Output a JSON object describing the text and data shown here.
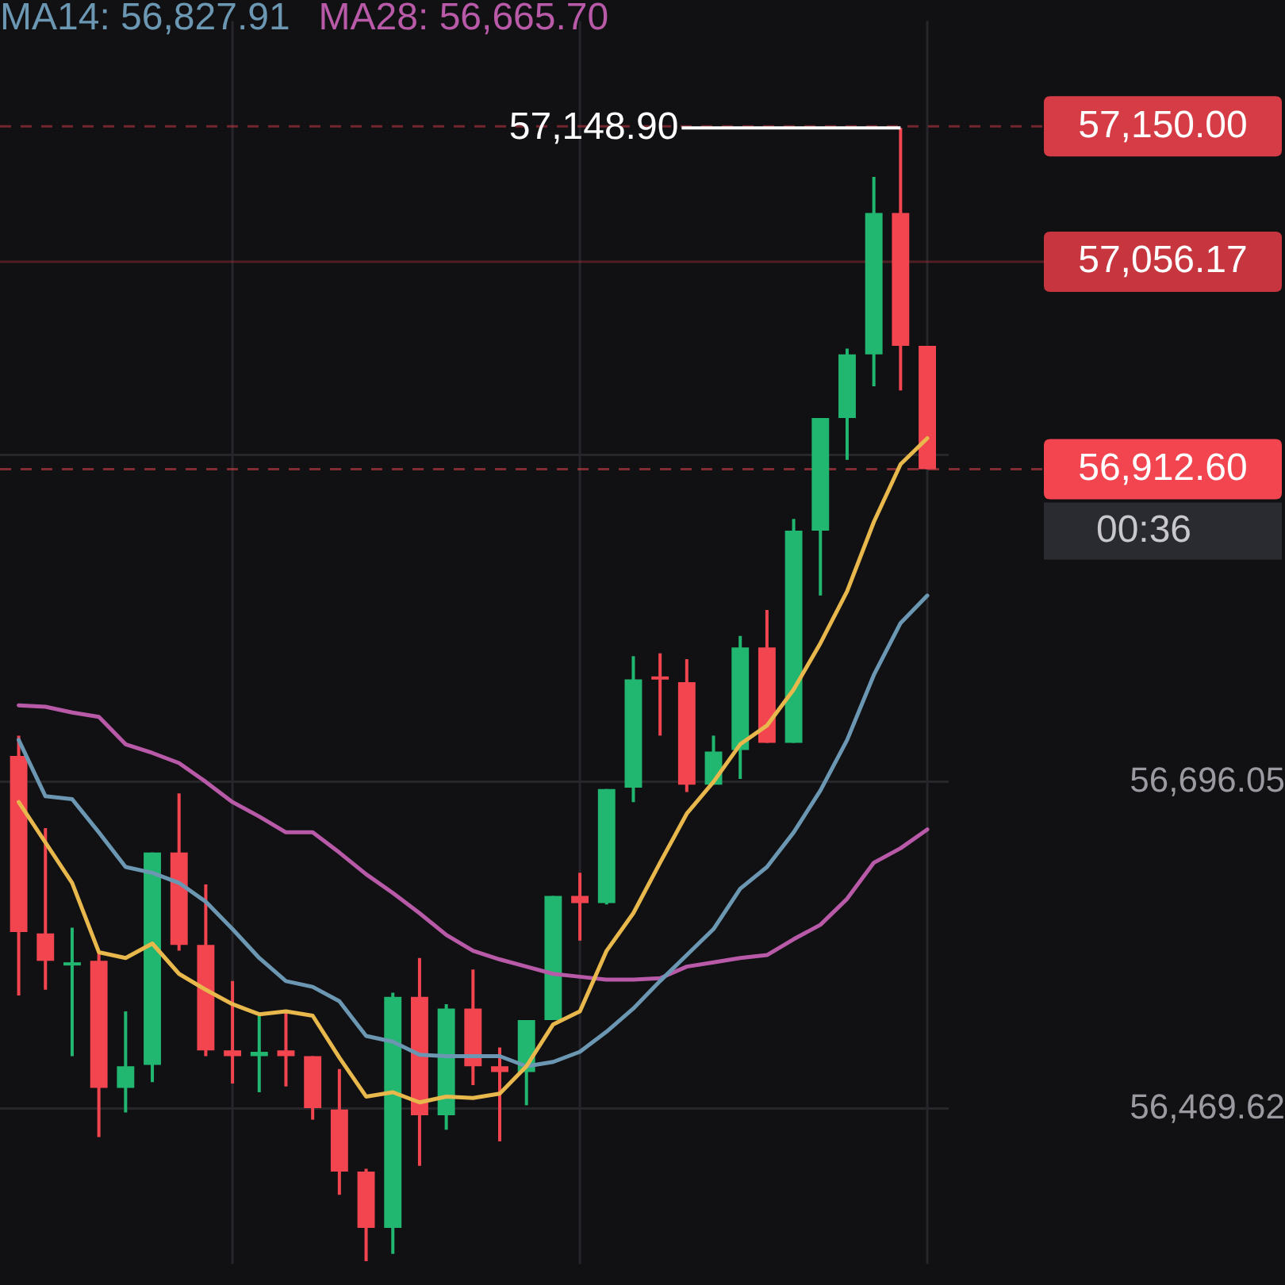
{
  "chart_data": {
    "type": "candlestick",
    "categories": [
      null,
      null,
      null,
      null,
      null,
      null,
      null,
      null,
      null,
      null,
      null,
      null,
      null,
      null,
      null,
      null,
      null,
      null,
      null,
      null,
      null,
      null,
      null,
      null,
      null,
      null,
      null,
      null,
      null,
      null,
      null,
      null,
      null,
      null,
      null
    ],
    "ohlc": [
      [
        56714,
        56728,
        56548,
        56592
      ],
      [
        56591,
        56664,
        56552,
        56572
      ],
      [
        56569,
        56595,
        56506,
        56571
      ],
      [
        56572,
        56578,
        56450,
        56484
      ],
      [
        56484,
        56537,
        56467,
        56499
      ],
      [
        56500,
        56647,
        56488,
        56647
      ],
      [
        56647,
        56688,
        56579,
        56583
      ],
      [
        56583,
        56625,
        56506,
        56510
      ],
      [
        56510,
        56558,
        56487,
        56506
      ],
      [
        56506,
        56534,
        56481,
        56509
      ],
      [
        56510,
        56536,
        56485,
        56506
      ],
      [
        56506,
        56506,
        56462,
        56470
      ],
      [
        56469,
        56497,
        56410,
        56426
      ],
      [
        56426,
        56428,
        56364,
        56387
      ],
      [
        56387,
        56550,
        56369,
        56547
      ],
      [
        56547,
        56574,
        56430,
        56465
      ],
      [
        56465,
        56542,
        56455,
        56539
      ],
      [
        56539,
        56566,
        56486,
        56499
      ],
      [
        56499,
        56512,
        56447,
        56495
      ],
      [
        56495,
        56531,
        56472,
        56531
      ],
      [
        56531,
        56617,
        56531,
        56617
      ],
      [
        56617,
        56633,
        56586,
        56612
      ],
      [
        56612,
        56691,
        56611,
        56691
      ],
      [
        56692,
        56783,
        56682,
        56767
      ],
      [
        56769,
        56785,
        56728,
        56767
      ],
      [
        56765,
        56781,
        56689,
        56694
      ],
      [
        56694,
        56728,
        56694,
        56717
      ],
      [
        56718,
        56797,
        56698,
        56789
      ],
      [
        56789,
        56815,
        56723,
        56723
      ],
      [
        56723,
        56878,
        56723,
        56870
      ],
      [
        56870,
        56948,
        56825,
        56948
      ],
      [
        56948,
        56996,
        56919,
        56992
      ],
      [
        56992,
        57115,
        56970,
        57090
      ],
      [
        57090,
        57148.9,
        56967,
        56998
      ],
      [
        56998,
        56998,
        56912.6,
        56912.6
      ]
    ],
    "colors": [
      "#f2454f",
      "#f2454f",
      "#22b770",
      "#f2454f",
      "#22b770",
      "#22b770",
      "#f2454f",
      "#f2454f",
      "#f2454f",
      "#22b770",
      "#f2454f",
      "#f2454f",
      "#f2454f",
      "#f2454f",
      "#22b770",
      "#f2454f",
      "#22b770",
      "#f2454f",
      "#f2454f",
      "#22b770",
      "#22b770",
      "#f2454f",
      "#22b770",
      "#22b770",
      "#f2454f",
      "#f2454f",
      "#22b770",
      "#22b770",
      "#f2454f",
      "#22b770",
      "#22b770",
      "#22b770",
      "#22b770",
      "#f2454f",
      "#f2454f"
    ],
    "series": [
      {
        "type": "line",
        "color": "#e8b84c",
        "values": [
          56682,
          56654,
          56626,
          56578,
          56574,
          56584,
          56563,
          56552,
          56542,
          56535,
          56537,
          56534,
          56505,
          56478,
          56481,
          56474,
          56478,
          56477,
          56480,
          56499,
          56528,
          56537,
          56579,
          56605,
          56640,
          56674,
          56696,
          56722,
          56735,
          56760,
          56792,
          56828,
          56876,
          56916,
          56934
        ]
      },
      {
        "type": "line",
        "name": "MA14: 56,827.91",
        "color": "#6b97b3",
        "values": [
          56725,
          56686,
          56684,
          56661,
          56637,
          56633,
          56626,
          56613,
          56594,
          56574,
          56558,
          56554,
          56544,
          56520,
          56516,
          56507,
          56506,
          56506,
          56506,
          56499,
          56502,
          56509,
          56523,
          56539,
          56558,
          56576,
          56594,
          56622,
          56637,
          56661,
          56690,
          56725,
          56770,
          56806,
          56825
        ]
      },
      {
        "type": "line",
        "name": "MA28: 56,665.70",
        "color": "#b85aa8",
        "values": [
          56749,
          56748,
          56744,
          56741,
          56722,
          56716,
          56709,
          56696,
          56682,
          56672,
          56661,
          56661,
          56647,
          56632,
          56619,
          56605,
          56590,
          56579,
          56573,
          56568,
          56563,
          56561,
          56559,
          56559,
          56560,
          56568,
          56571,
          56574,
          56576,
          56587,
          56597,
          56615,
          56640,
          56650,
          56663
        ]
      }
    ],
    "ylim": [
      56362,
      57223
    ],
    "yticks": [
      {
        "value": 56469.62,
        "label": "56,469.62"
      },
      {
        "value": 56696.05,
        "label": "56,696.05"
      },
      {
        "value": 56922.48,
        "label": null
      }
    ],
    "grid": true,
    "legend": "top",
    "marker": "none",
    "ref_lines": [
      {
        "axis": "y",
        "value": 57150,
        "label": "57,150.00",
        "color": "#d63c45",
        "line_style": "dashed"
      },
      {
        "axis": "y",
        "value": 57056.17,
        "label": "57,056.17",
        "color": "#c7363e",
        "line_style": "solid"
      },
      {
        "axis": "y",
        "value": 56912.6,
        "label": "56,912.60",
        "color": "#f2454f",
        "line_style": "dashed"
      }
    ],
    "annotations": [
      {
        "text": "57,148.90",
        "y": 57148.9
      },
      "00:36"
    ]
  }
}
